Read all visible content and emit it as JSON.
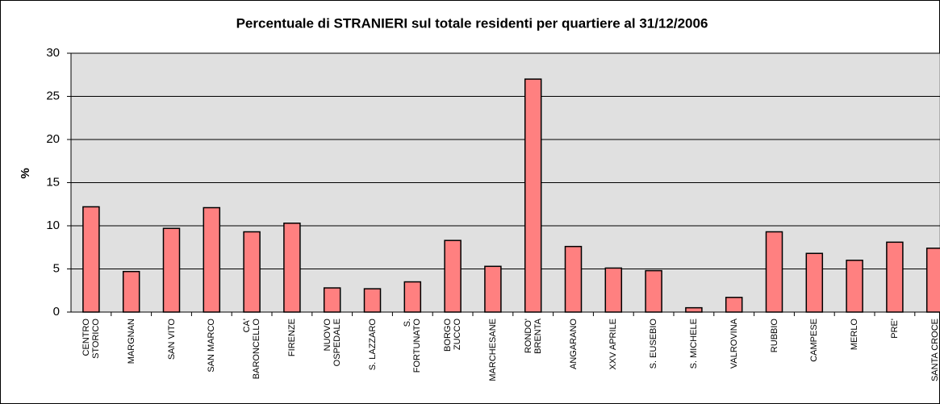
{
  "chart_data": {
    "type": "bar",
    "title": "Percentuale di STRANIERI sul totale residenti per quartiere al 31/12/2006",
    "y_label": "%",
    "categories": [
      "CENTRO\nSTORICO",
      "MARGNAN",
      "SAN VITO",
      "SAN MARCO",
      "CA'\nBARONCELLO",
      "FIRENZE",
      "NUOVO\nOSPEDALE",
      "S. LAZZARO",
      "S.\nFORTUNATO",
      "BORGO\nZUCCO",
      "MARCHESANE",
      "RONDO'\nBRENTA",
      "ANGARANO",
      "XXV APRILE",
      "S. EUSEBIO",
      "S. MICHELE",
      "VALROVINA",
      "RUBBIO",
      "CAMPESE",
      "MERLO",
      "PRE'",
      "SANTA CROCE"
    ],
    "values": [
      12.2,
      4.7,
      9.7,
      12.1,
      9.3,
      10.3,
      2.8,
      2.7,
      3.5,
      8.3,
      5.3,
      27.0,
      7.6,
      5.1,
      4.8,
      0.5,
      1.7,
      9.3,
      6.8,
      6.0,
      8.1,
      7.4
    ],
    "color": "#ff8080",
    "ylim": [
      0,
      30
    ],
    "yticks": [
      0,
      5,
      10,
      15,
      20,
      25,
      30
    ],
    "grid": true
  }
}
